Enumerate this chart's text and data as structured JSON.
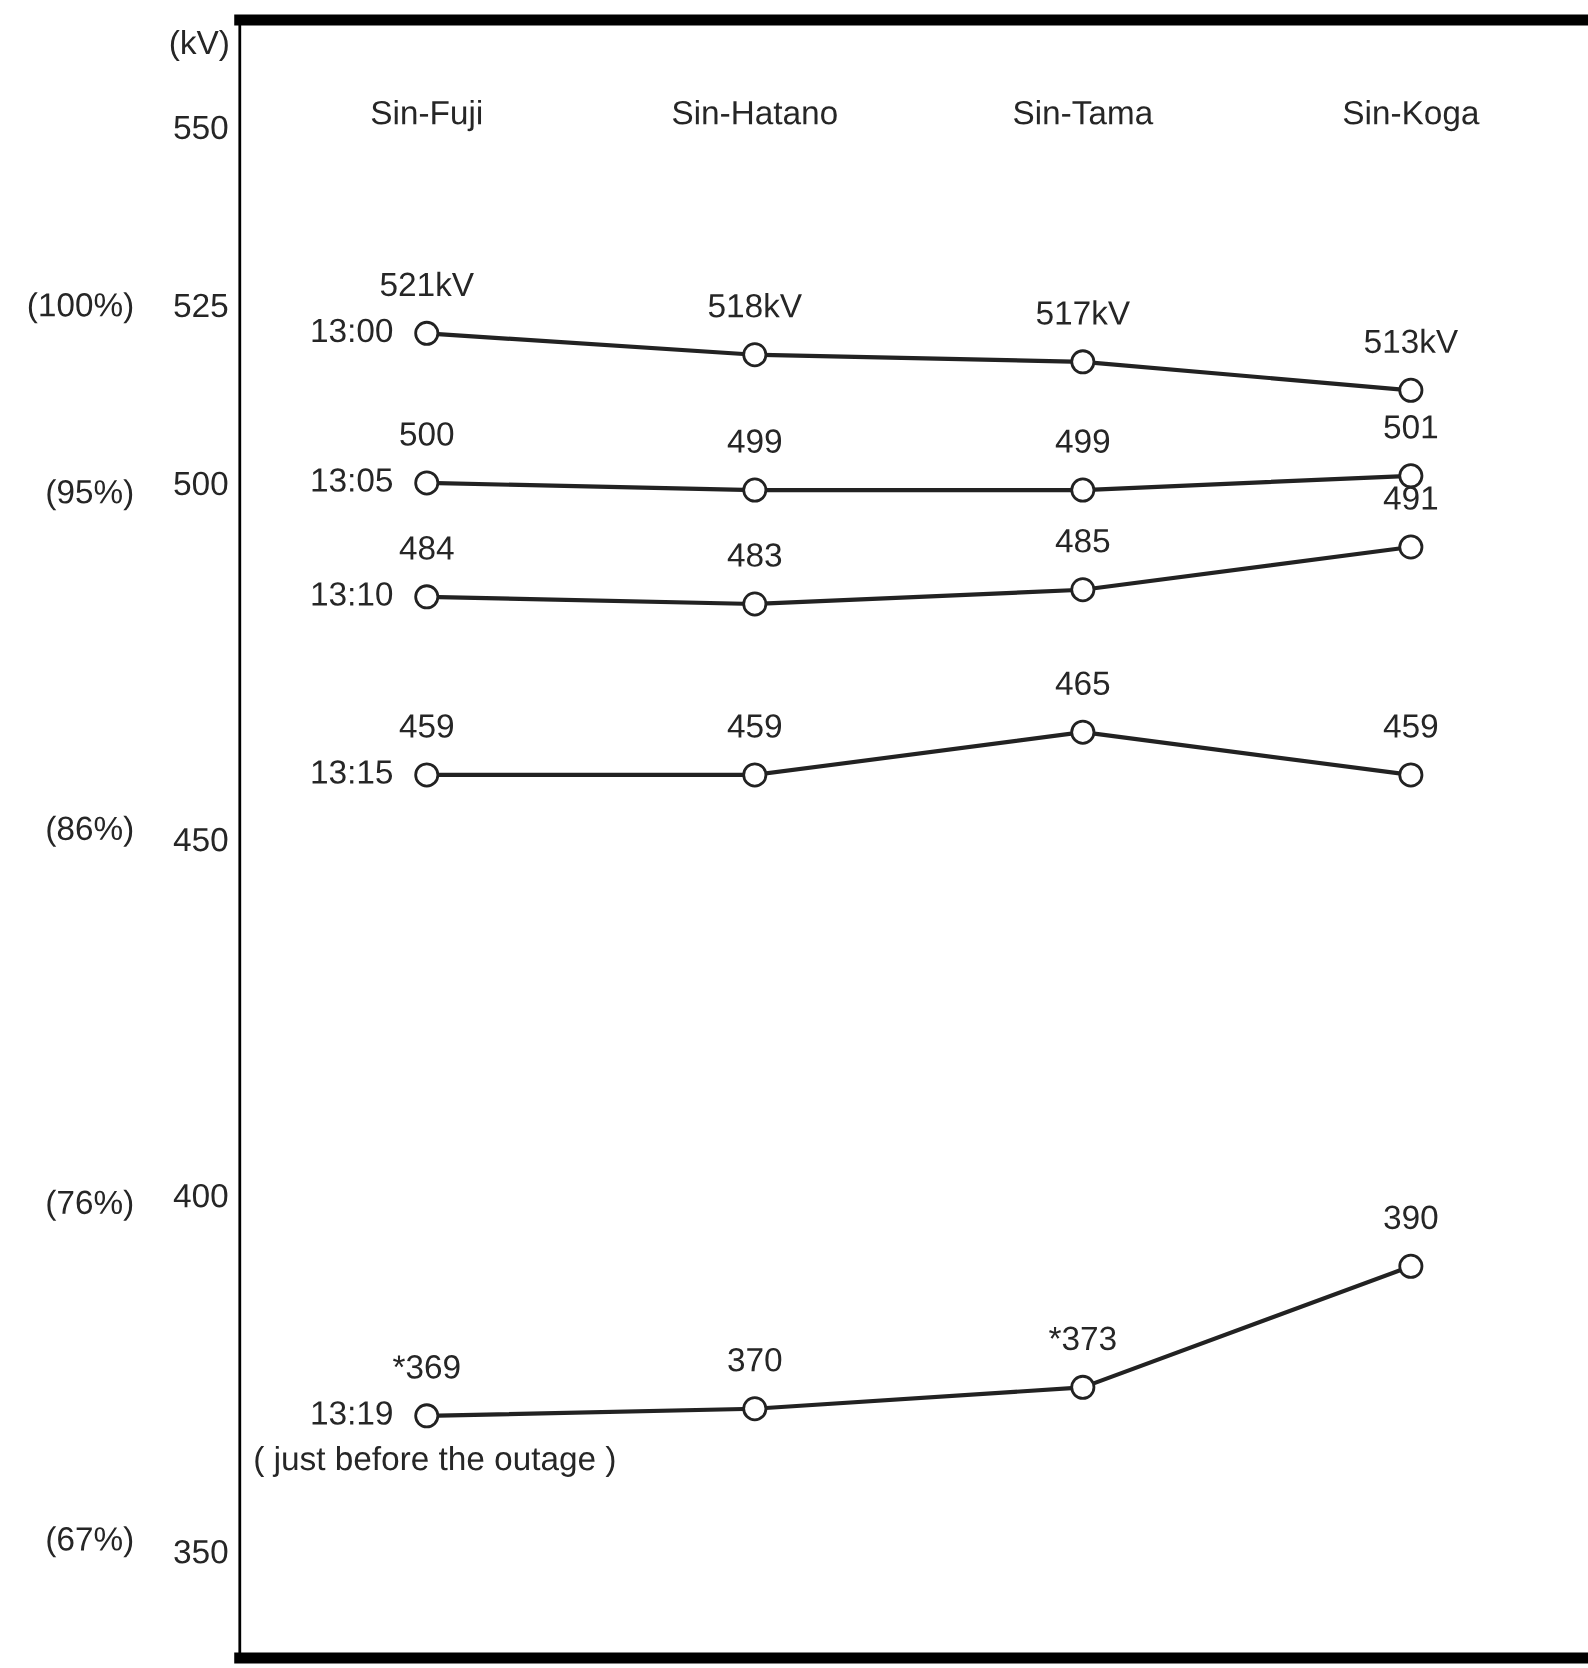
{
  "chart_data": {
    "type": "line",
    "ylabel": "(kV)",
    "categories": [
      "Sin-Fuji",
      "Sin-Hatano",
      "Sin-Tama",
      "Sin-Koga"
    ],
    "series": [
      {
        "name": "13:00",
        "color": "#222222",
        "values": [
          521,
          518,
          517,
          513
        ],
        "value_labels": [
          "521kV",
          "518kV",
          "517kV",
          "513kV"
        ]
      },
      {
        "name": "13:05",
        "color": "#222222",
        "values": [
          500,
          499,
          499,
          501
        ],
        "value_labels": [
          "500",
          "499",
          "499",
          "501"
        ]
      },
      {
        "name": "13:10",
        "color": "#222222",
        "values": [
          484,
          483,
          485,
          491
        ],
        "value_labels": [
          "484",
          "483",
          "485",
          "491"
        ]
      },
      {
        "name": "13:15",
        "color": "#222222",
        "values": [
          459,
          459,
          465,
          459
        ],
        "value_labels": [
          "459",
          "459",
          "465",
          "459"
        ]
      },
      {
        "name": "13:19",
        "color": "#222222",
        "values": [
          369,
          370,
          373,
          390
        ],
        "value_labels": [
          "*369",
          "370",
          "*373",
          "390"
        ]
      }
    ],
    "ylim": [
      335,
      565
    ],
    "yticks": [
      350,
      400,
      450,
      500,
      525,
      550
    ],
    "y2lim": [
      63.8,
      107.6
    ],
    "y2ticks": [
      {
        "value": 67,
        "label": "(67%)"
      },
      {
        "value": 76,
        "label": "(76%)"
      },
      {
        "value": 86,
        "label": "(86%)"
      },
      {
        "value": 95,
        "label": "(95%)"
      },
      {
        "value": 100,
        "label": "(100%)"
      }
    ],
    "marker": "circle",
    "line_style": "solid",
    "grid": false,
    "legend": "left",
    "annotations": [
      "( just before the outage )"
    ]
  }
}
